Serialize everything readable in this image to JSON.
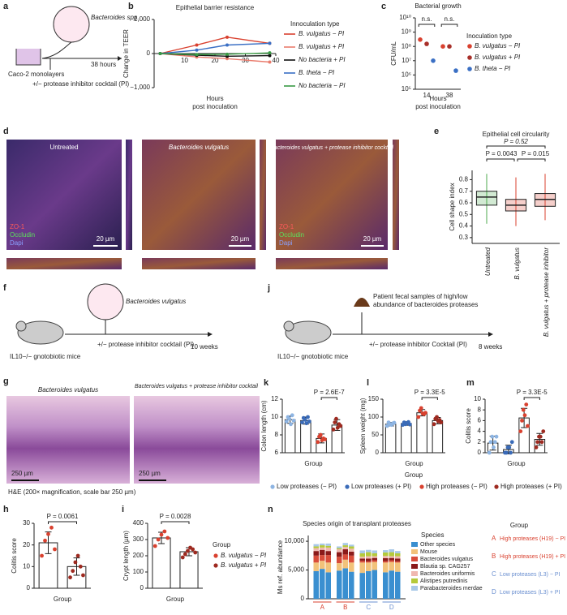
{
  "figure": {
    "panel_letters": [
      "a",
      "b",
      "c",
      "d",
      "e",
      "f",
      "g",
      "h",
      "i",
      "j",
      "k",
      "l",
      "m",
      "n"
    ],
    "a": {
      "organism": "Bacteroides spp.",
      "cells": "Caco-2 monolayers",
      "treatment": "+/− protease inhibitor cocktail (PI)",
      "duration": "38 hours"
    },
    "d": {
      "images": [
        "Untreated",
        "Bacteroides vulgatus",
        "Bacteroides vulgatus + protease inhibitor cocktail"
      ],
      "stains": [
        "ZO-1",
        "Occludin",
        "Dapi"
      ],
      "scale_bar": "20 µm"
    },
    "f": {
      "organism": "Bacteroides vulgatus",
      "treatment": "+/− protease inhibitor cocktail (PI)",
      "duration": "10 weeks",
      "mice": "IL10−/− gnotobiotic mice"
    },
    "j": {
      "samples": [
        "Patient fecal samples of high/low",
        "abundance of bacteroides proteases"
      ],
      "treatment": "+/− protease inhibitor Cocktail (PI)",
      "duration": "8 weeks",
      "mice": "IL10−/− gnotobiotic mice"
    },
    "g": {
      "images": [
        "Bacteroides vulgatus",
        "Bacteroides vulgatus + protease inhibitor cocktail"
      ],
      "scale_bar": "250 µm",
      "caption": "H&E (200× magnification, scale bar 250 µm)"
    },
    "group_legend": {
      "title": "Group",
      "entries": [
        "Low proteases (− PI)",
        "Low proteases (+ PI)",
        "High proteases (− PI)",
        "High proteases (+ PI)"
      ],
      "colors": [
        "#8db4e2",
        "#3a6bb8",
        "#d9412f",
        "#9e2a20"
      ]
    }
  },
  "chart_data": [
    {
      "type": "line",
      "title": "Epithelial barrier resistance",
      "ylabel": "Change in TEER",
      "xlabel": [
        "Hours",
        "post inoculation"
      ],
      "x": [
        2,
        14,
        24,
        38
      ],
      "xlim": [
        0,
        40
      ],
      "xticks": [
        10,
        20,
        30,
        40
      ],
      "ylim": [
        -1000,
        1000
      ],
      "yticks": [
        {
          "value": -1000,
          "label": "−1,000"
        },
        0,
        {
          "value": 1000,
          "label": "1,000"
        }
      ],
      "legend_title": "Innoculation type",
      "series": [
        {
          "name": "B. vulgatus − PI",
          "color": "#d9412f",
          "values": [
            0,
            250,
            480,
            300
          ]
        },
        {
          "name": "B. vulgatus + PI",
          "color": "#e97b6c",
          "values": [
            0,
            -100,
            -150,
            -250
          ]
        },
        {
          "name": "No bacteria + PI",
          "color": "#111111",
          "values": [
            0,
            -50,
            -80,
            -60
          ]
        },
        {
          "name": "B. theta − PI",
          "color": "#3a6fc4",
          "values": [
            0,
            100,
            250,
            300
          ]
        },
        {
          "name": "No bacteria − PI",
          "color": "#3a9a45",
          "values": [
            0,
            -30,
            -20,
            20
          ]
        }
      ]
    },
    {
      "type": "dot",
      "title": "Bacterial growth",
      "ylabel": "CFU/mL",
      "xlabel": [
        "Hours",
        "post inoculation"
      ],
      "categories": [
        "14",
        "38"
      ],
      "log_scale": true,
      "ylim": [
        100000,
        10000000000
      ],
      "yticks": [
        {
          "value": 100000,
          "label": "10⁵"
        },
        {
          "value": 1000000,
          "label": "10⁶"
        },
        {
          "value": 10000000,
          "label": "10⁷"
        },
        {
          "value": 100000000,
          "label": "10⁸"
        },
        {
          "value": 1000000000,
          "label": "10⁹"
        },
        {
          "value": 10000000000,
          "label": "10¹⁰"
        }
      ],
      "annotations": [
        "n.s.",
        "n.s."
      ],
      "legend_title": "Inoculation type",
      "series": [
        {
          "name": "B. vulgatus − PI",
          "color": "#d9412f",
          "values": [
            300000000,
            100000000
          ]
        },
        {
          "name": "B. vulgatus + PI",
          "color": "#a8302a",
          "values": [
            150000000,
            100000000
          ]
        },
        {
          "name": "B. theta − PI",
          "color": "#3a6fc4",
          "values": [
            10000000,
            2000000
          ]
        }
      ]
    },
    {
      "type": "box",
      "title": "Epithelial cell circularity",
      "ylabel": "Cell shape index",
      "categories": [
        "Untreated",
        "B. vulgatus",
        "B. vulgatus + protease inhibitor"
      ],
      "colors": [
        "#4caa4e",
        "#d9412f",
        "#d9412f"
      ],
      "ylim": [
        0.25,
        0.88
      ],
      "yticks": [
        0.3,
        0.4,
        0.5,
        0.6,
        0.7,
        0.8
      ],
      "boxes": [
        {
          "low": 0.42,
          "q1": 0.58,
          "median": 0.65,
          "q3": 0.7,
          "high": 0.85
        },
        {
          "low": 0.4,
          "q1": 0.53,
          "median": 0.58,
          "q3": 0.63,
          "high": 0.82
        },
        {
          "low": 0.45,
          "q1": 0.57,
          "median": 0.63,
          "q3": 0.68,
          "high": 0.85
        }
      ],
      "annotations": [
        "P = 0.52",
        "P = 0.0043",
        "P = 0.015"
      ]
    },
    {
      "type": "bar",
      "ylabel": "Colon length (cm)",
      "xlabel": "Group",
      "annotation": "P = 2.6E-7",
      "colors": [
        "#8db4e2",
        "#3a6bb8",
        "#d9412f",
        "#9e2a20"
      ],
      "values": [
        9.7,
        9.6,
        7.6,
        9.1
      ],
      "errors": [
        0.4,
        0.4,
        0.5,
        0.6
      ],
      "points": [
        [
          9.5,
          10,
          9.8,
          9.2,
          10.2,
          9.6
        ],
        [
          9.4,
          9.9,
          9.7,
          9.3,
          10,
          9.5
        ],
        [
          7.2,
          7.8,
          8,
          7.4,
          7.6,
          7.5
        ],
        [
          8.6,
          9.4,
          9.8,
          8.8,
          9.2,
          9
        ]
      ],
      "ylim": [
        6,
        12
      ],
      "yticks": [
        6,
        8,
        10,
        12
      ]
    },
    {
      "type": "bar",
      "ylabel": "Spleen weight (mg)",
      "xlabel": "Group",
      "annotation": "P = 3.3E-5",
      "colors": [
        "#8db4e2",
        "#3a6bb8",
        "#d9412f",
        "#9e2a20"
      ],
      "values": [
        80,
        82,
        112,
        90
      ],
      "errors": [
        5,
        5,
        9,
        9
      ],
      "points": [
        [
          75,
          85,
          80,
          78,
          82,
          84
        ],
        [
          78,
          85,
          80,
          83,
          86,
          79
        ],
        [
          100,
          118,
          125,
          110,
          108,
          112
        ],
        [
          80,
          95,
          100,
          88,
          92,
          85
        ]
      ],
      "ylim": [
        0,
        150
      ],
      "yticks": [
        0,
        50,
        100,
        150
      ]
    },
    {
      "type": "bar",
      "ylabel": "Colitis score",
      "xlabel": "Group",
      "annotation": "P = 3.3E-5",
      "colors": [
        "#8db4e2",
        "#3a6bb8",
        "#d9412f",
        "#9e2a20"
      ],
      "values": [
        1.8,
        0.6,
        6.5,
        2.5
      ],
      "errors": [
        1.3,
        0.8,
        1.8,
        1.1
      ],
      "points": [
        [
          0,
          2,
          3,
          1,
          2,
          3
        ],
        [
          0,
          0,
          1,
          1,
          0,
          2
        ],
        [
          4,
          6,
          8,
          7,
          9,
          5
        ],
        [
          1,
          2,
          3,
          3,
          2,
          4
        ]
      ],
      "ylim": [
        0,
        10
      ],
      "yticks": [
        0,
        2,
        4,
        6,
        8,
        10
      ]
    },
    {
      "type": "bar",
      "ylabel": "Colitis score",
      "xlabel": "Group",
      "annotation": "P = 0.0061",
      "colors": [
        "#d9412f",
        "#9e2a20"
      ],
      "values": [
        21,
        10
      ],
      "errors": [
        5,
        4
      ],
      "points": [
        [
          15,
          22,
          25,
          28,
          18
        ],
        [
          5,
          8,
          12,
          15,
          10,
          6
        ]
      ],
      "ylim": [
        0,
        30
      ],
      "yticks": [
        0,
        10,
        20,
        30
      ]
    },
    {
      "type": "bar",
      "ylabel": "Crypt length (µm)",
      "xlabel": "Group",
      "annotation": "P = 0.0028",
      "colors": [
        "#d9412f",
        "#9e2a20"
      ],
      "values": [
        310,
        225
      ],
      "errors": [
        35,
        25
      ],
      "points": [
        [
          260,
          300,
          330,
          350,
          310
        ],
        [
          190,
          210,
          230,
          250,
          240,
          220
        ]
      ],
      "ylim": [
        0,
        400
      ],
      "yticks": [
        0,
        100,
        200,
        300,
        400
      ],
      "legend_title": "Group",
      "series_names": [
        "B. vulgatus − PI",
        "B. vulgatus + PI"
      ]
    },
    {
      "type": "stacked_bar",
      "title": "Species origin of transplant proteases",
      "ylabel": "Ms ref. abundance",
      "ylim": [
        0,
        11000
      ],
      "yticks": [
        0,
        {
          "value": 5000,
          "label": "5,000"
        },
        {
          "value": 10000,
          "label": "10,000"
        }
      ],
      "groups": [
        "A",
        "B",
        "C",
        "D"
      ],
      "group_colors": [
        "#d9412f",
        "#d9412f",
        "#6a8fd0",
        "#6a8fd0"
      ],
      "legend_title": "Species",
      "series": [
        {
          "name": "Other species",
          "color": "#3a8fd0",
          "values": [
            4800,
            5200,
            4600,
            4900,
            5300,
            4700,
            4500,
            4800,
            5000,
            4600,
            4900,
            4700
          ]
        },
        {
          "name": "Mouse",
          "color": "#f2c27a",
          "values": [
            1500,
            1400,
            1700,
            1300,
            1500,
            1600,
            1800,
            1500,
            1400,
            1700,
            1500,
            1600
          ]
        },
        {
          "name": "Bacteroides vulgatus",
          "color": "#d94c3a",
          "values": [
            1200,
            1000,
            1300,
            1100,
            900,
            1200,
            300,
            200,
            300,
            250,
            300,
            200
          ]
        },
        {
          "name": "Blautia sp. CAG257",
          "color": "#8b1a1a",
          "values": [
            800,
            900,
            700,
            800,
            900,
            700,
            400,
            500,
            400,
            500,
            400,
            500
          ]
        },
        {
          "name": "Bacteroides uniformis",
          "color": "#f0b8b0",
          "values": [
            500,
            400,
            600,
            500,
            400,
            500,
            300,
            400,
            300,
            400,
            300,
            400
          ]
        },
        {
          "name": "Alistipes putredinis",
          "color": "#b5c93a",
          "values": [
            300,
            400,
            300,
            200,
            300,
            400,
            600,
            700,
            500,
            600,
            700,
            500
          ]
        },
        {
          "name": "Parabacteroides merdae",
          "color": "#a8c8e8",
          "values": [
            400,
            300,
            400,
            300,
            400,
            300,
            500,
            400,
            500,
            400,
            500,
            400
          ]
        }
      ],
      "group_legend": {
        "title": "Group",
        "entries": [
          "High proteases (H19) − PI",
          "High proteases (H19) + PI",
          "Low proteases (L3) − PI",
          "Low proteases (L3) + PI"
        ]
      }
    }
  ]
}
